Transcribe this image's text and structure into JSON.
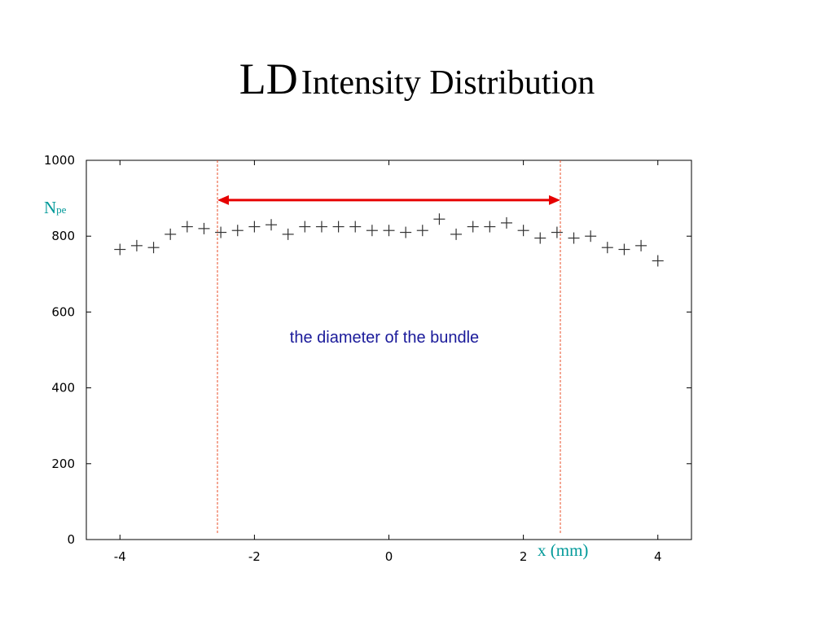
{
  "slide": {
    "title_main": "LD",
    "title_sub": "Intensity Distribution"
  },
  "chart_data": {
    "type": "scatter",
    "ylabel_main": "N",
    "ylabel_sub": "pe",
    "xlabel": "x (mm)",
    "xlim": [
      -4.5,
      4.5
    ],
    "ylim": [
      0,
      1000
    ],
    "x_ticks": [
      -4,
      -2,
      0,
      2,
      4
    ],
    "y_ticks": [
      0,
      200,
      400,
      600,
      800,
      1000
    ],
    "grid": false,
    "marker": "+",
    "series": [
      {
        "x": [
          -4.0,
          -3.75,
          -3.5,
          -3.25,
          -3.0,
          -2.75,
          -2.5,
          -2.25,
          -2.0,
          -1.75,
          -1.5,
          -1.25,
          -1.0,
          -0.75,
          -0.5,
          -0.25,
          0.0,
          0.25,
          0.5,
          0.75,
          1.0,
          1.25,
          1.5,
          1.75,
          2.0,
          2.25,
          2.5,
          2.75,
          3.0,
          3.25,
          3.5,
          3.75,
          4.0
        ],
        "y": [
          765,
          775,
          770,
          805,
          825,
          820,
          810,
          815,
          825,
          830,
          805,
          825,
          825,
          825,
          825,
          815,
          815,
          810,
          815,
          845,
          805,
          825,
          825,
          835,
          815,
          795,
          810,
          795,
          800,
          770,
          765,
          775,
          735
        ]
      }
    ],
    "bundle_boundaries": [
      -2.55,
      2.55
    ],
    "bundle_arrow_y": 895,
    "annotation": "the diameter of the bundle",
    "colors": {
      "marker": "#333333",
      "frame": "#000000",
      "boundary": "#e8502a",
      "arrow": "#e60000",
      "annotation": "#1a1a9a",
      "axis_label": "#009999"
    }
  }
}
